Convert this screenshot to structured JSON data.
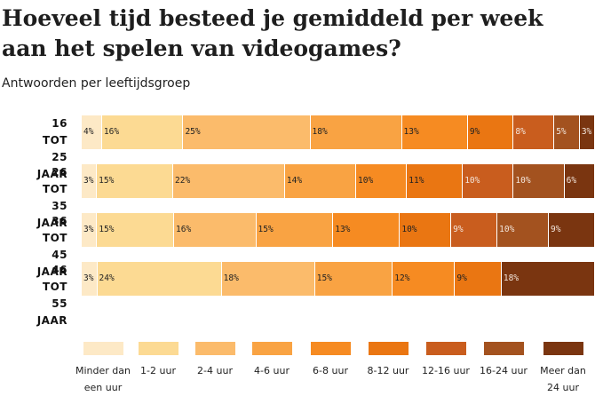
{
  "chart_data": {
    "type": "stacked-bar-100",
    "title": "Hoeveel tijd besteed je gemiddeld per week aan het spelen van videogames?",
    "subtitle": "Antwoorden per leeftijdsgroep",
    "categories": [
      "16 TOT 25 JAAR",
      "26 TOT 35 JAAR",
      "36 TOT 45 JAAR",
      "46 TOT 55 JAAR"
    ],
    "series": [
      {
        "name": "Minder dan een uur",
        "color": "#fde9c6",
        "values": [
          4,
          3,
          3,
          3
        ],
        "value_labels": [
          "4%",
          "3%",
          "3%",
          "3%"
        ]
      },
      {
        "name": "1-2 uur",
        "color": "#fcda93",
        "values": [
          16,
          15,
          15,
          24
        ],
        "value_labels": [
          "16%",
          "15%",
          "15%",
          "24%"
        ]
      },
      {
        "name": "2-4 uur",
        "color": "#fbbb6b",
        "values": [
          25,
          22,
          16,
          18
        ],
        "value_labels": [
          "25%",
          "22%",
          "16%",
          "18%"
        ]
      },
      {
        "name": "4-6 uur",
        "color": "#f9a343",
        "values": [
          18,
          14,
          15,
          15
        ],
        "value_labels": [
          "18%",
          "14%",
          "15%",
          "15%"
        ]
      },
      {
        "name": "6-8 uur",
        "color": "#f68b22",
        "values": [
          13,
          10,
          13,
          12
        ],
        "value_labels": [
          "13%",
          "10%",
          "13%",
          "12%"
        ]
      },
      {
        "name": "8-12 uur",
        "color": "#ea7612",
        "values": [
          9,
          11,
          10,
          9
        ],
        "value_labels": [
          "9%",
          "11%",
          "10%",
          "9%"
        ]
      },
      {
        "name": "12-16 uur",
        "color": "#c95d1e",
        "values": [
          8,
          10,
          9,
          null
        ],
        "value_labels": [
          "8%",
          "10%",
          "9%",
          null
        ]
      },
      {
        "name": "16-24 uur",
        "color": "#a3521f",
        "values": [
          5,
          10,
          10,
          null
        ],
        "value_labels": [
          "5%",
          "10%",
          "10%",
          null
        ]
      },
      {
        "name": "Meer dan 24 uur",
        "color": "#7a3510",
        "values": [
          3,
          6,
          9,
          18
        ],
        "value_labels": [
          "3%",
          "6%",
          "9%",
          "18%"
        ]
      }
    ]
  }
}
